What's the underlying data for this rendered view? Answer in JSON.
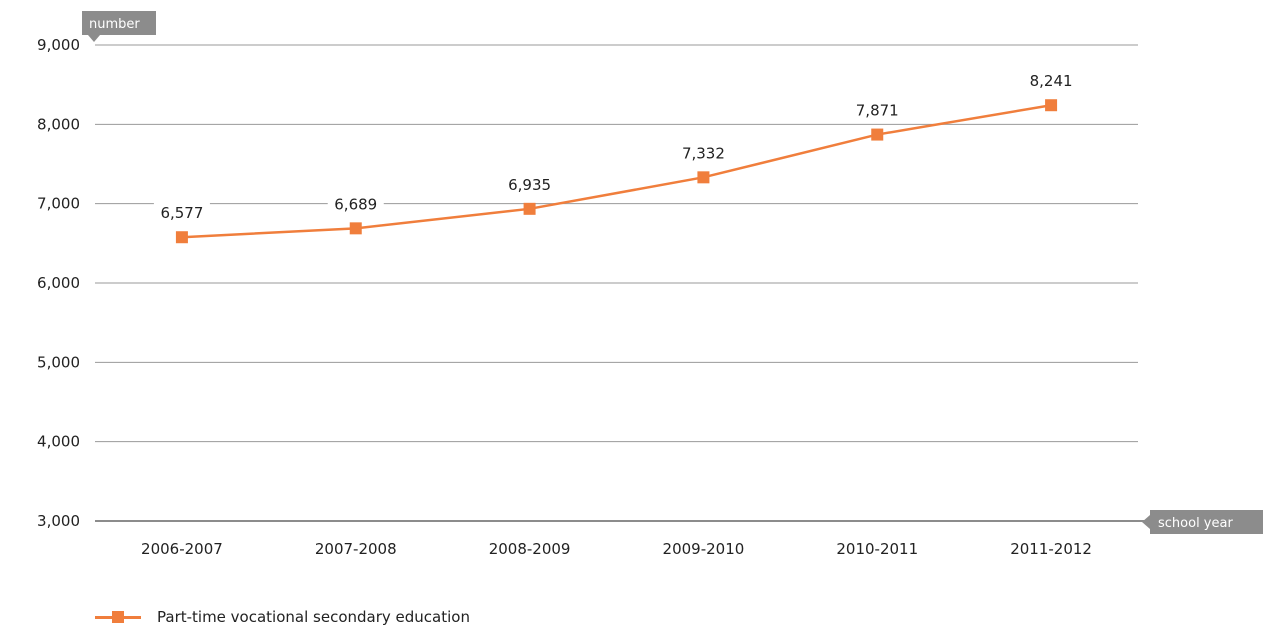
{
  "chart_data": {
    "type": "line",
    "categories": [
      "2006-2007",
      "2007-2008",
      "2008-2009",
      "2009-2010",
      "2010-2011",
      "2011-2012"
    ],
    "series": [
      {
        "name": "Part-time vocational secondary education",
        "values": [
          6577,
          6689,
          6935,
          7332,
          7871,
          8241
        ],
        "labels": [
          "6,577",
          "6,689",
          "6,935",
          "7,332",
          "7,871",
          "8,241"
        ]
      }
    ],
    "ylabel": "number",
    "xlabel": "school year",
    "ylim": [
      3000,
      9000
    ],
    "yticks": [
      3000,
      4000,
      5000,
      6000,
      7000,
      8000,
      9000
    ],
    "ytick_labels": [
      "3,000",
      "4,000",
      "5,000",
      "6,000",
      "7,000",
      "8,000",
      "9,000"
    ],
    "grid": true,
    "legend_position": "bottom-left"
  },
  "colors": {
    "series": "#f07e3c",
    "grid": "#9a9a9a",
    "axis": "#8c8c8c",
    "tag": "#8c8c8c"
  }
}
